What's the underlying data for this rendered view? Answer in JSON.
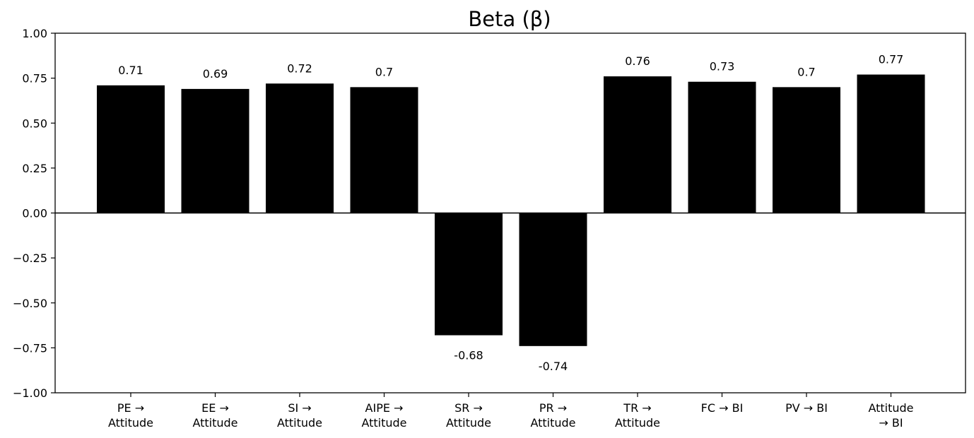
{
  "chart_data": {
    "type": "bar",
    "title": "Beta (β)",
    "xlabel": "",
    "ylabel": "",
    "ylim": [
      -1.0,
      1.0
    ],
    "yticks": [
      "−1.00",
      "−0.75",
      "−0.50",
      "−0.25",
      "0.00",
      "0.25",
      "0.50",
      "0.75",
      "1.00"
    ],
    "ytick_values": [
      -1.0,
      -0.75,
      -0.5,
      -0.25,
      0.0,
      0.25,
      0.5,
      0.75,
      1.0
    ],
    "categories": [
      [
        "PE →",
        "Attitude"
      ],
      [
        "EE →",
        "Attitude"
      ],
      [
        "SI →",
        "Attitude"
      ],
      [
        "AIPE →",
        "Attitude"
      ],
      [
        "SR →",
        "Attitude"
      ],
      [
        "PR →",
        "Attitude"
      ],
      [
        "TR →",
        "Attitude"
      ],
      [
        "FC → BI"
      ],
      [
        "PV → BI"
      ],
      [
        "Attitude",
        "→ BI"
      ]
    ],
    "values": [
      0.71,
      0.69,
      0.72,
      0.7,
      -0.68,
      -0.74,
      0.76,
      0.73,
      0.7,
      0.77
    ],
    "value_labels": [
      "0.71",
      "0.69",
      "0.72",
      "0.7",
      "-0.68",
      "-0.74",
      "0.76",
      "0.73",
      "0.7",
      "0.77"
    ],
    "bar_color": "#000000",
    "zero_line": true,
    "grid": false,
    "legend": "none"
  }
}
